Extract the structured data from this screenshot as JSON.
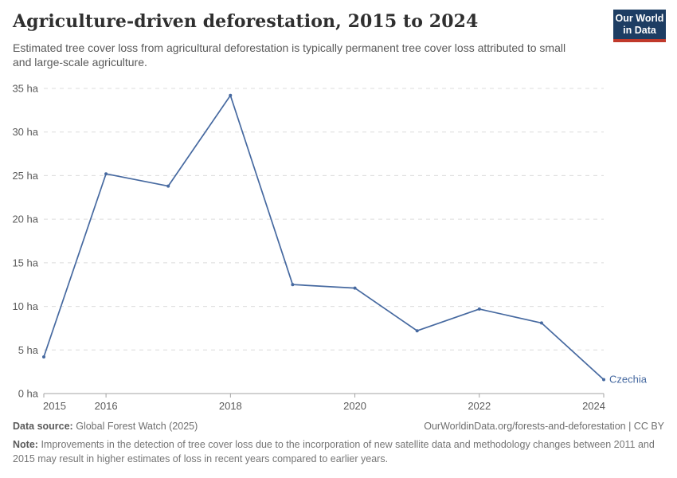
{
  "header": {
    "title": "Agriculture-driven deforestation, 2015 to 2024",
    "subtitle": "Estimated tree cover loss from agricultural deforestation is typically permanent tree cover loss attributed to small and large-scale agriculture."
  },
  "logo": {
    "line1": "Our World",
    "line2": "in Data",
    "bg_color": "#1d3d63",
    "stripe_color": "#c0392b"
  },
  "chart_data": {
    "type": "line",
    "title": "Agriculture-driven deforestation, 2015 to 2024",
    "x": [
      2015,
      2016,
      2017,
      2018,
      2019,
      2020,
      2021,
      2022,
      2023,
      2024
    ],
    "series": [
      {
        "name": "Czechia",
        "color": "#4669a0",
        "values": [
          4.2,
          25.2,
          23.8,
          34.2,
          12.5,
          12.1,
          7.2,
          9.7,
          8.1,
          1.6
        ]
      }
    ],
    "unit": "ha",
    "xlabel": "",
    "ylabel": "",
    "ylim": [
      0,
      35
    ],
    "yticks": [
      0,
      5,
      10,
      15,
      20,
      25,
      30,
      35
    ],
    "ytick_suffix": " ha",
    "xticks": [
      2015,
      2016,
      2018,
      2020,
      2022,
      2024
    ],
    "grid": "horizontal-dashed",
    "legend_position": "end-of-line-label"
  },
  "colors": {
    "line": "#4669a0",
    "grid": "#dcdcdc",
    "axis": "#a3a3a3",
    "tick_text": "#5b5b5b"
  },
  "footer": {
    "source_label": "Data source:",
    "source_value": "Global Forest Watch (2025)",
    "attribution": "OurWorldinData.org/forests-and-deforestation | CC BY",
    "note_label": "Note:",
    "note_text": "Improvements in the detection of tree cover loss due to the incorporation of new satellite data and methodology changes between 2011 and 2015 may result in higher estimates of loss in recent years compared to earlier years."
  }
}
